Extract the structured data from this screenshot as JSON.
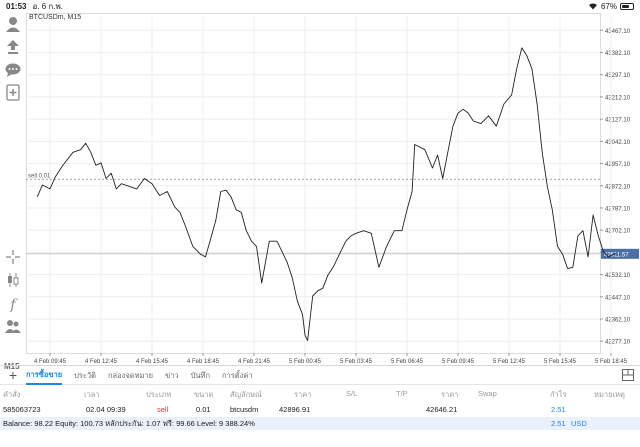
{
  "status": {
    "time": "01:53",
    "date": "อ. 6 ก.พ.",
    "battery": "67%",
    "battery_level": 0.67
  },
  "toolbar": {
    "timeframe": "M15",
    "icons": [
      "user-icon",
      "download-icon",
      "chat-icon",
      "add-indicator-icon",
      "crosshair-icon",
      "candlestick-icon",
      "function-icon",
      "objects-icon"
    ]
  },
  "chart": {
    "symbol_label": "BTCUSDm, M15",
    "sell_label": "sell 0.01",
    "current_price": "42611.57",
    "y_ticks": [
      "43467.10",
      "43382.10",
      "43297.10",
      "43212.10",
      "43127.10",
      "43042.10",
      "42957.10",
      "42872.10",
      "42787.10",
      "42702.10",
      "42617.10",
      "42532.10",
      "42447.10",
      "42362.10",
      "42277.10"
    ],
    "x_ticks": [
      "4 Feb 09:45",
      "4 Feb 12:45",
      "4 Feb 15:45",
      "4 Feb 18:45",
      "4 Feb 21:45",
      "5 Feb 00:45",
      "5 Feb 03:45",
      "5 Feb 06:45",
      "5 Feb 09:45",
      "5 Feb 12:45",
      "5 Feb 15:45",
      "5 Feb 18:45"
    ]
  },
  "chart_data": {
    "type": "line",
    "ylim": [
      42232,
      43518
    ],
    "sell_level": 42896.91,
    "current_price": 42611.57,
    "x_range": [
      -0.25,
      11.1
    ],
    "points": [
      [
        -0.25,
        42830
      ],
      [
        -0.15,
        42875
      ],
      [
        0.0,
        42860
      ],
      [
        0.1,
        42905
      ],
      [
        0.25,
        42950
      ],
      [
        0.45,
        43000
      ],
      [
        0.6,
        43010
      ],
      [
        0.7,
        43035
      ],
      [
        0.8,
        43000
      ],
      [
        0.9,
        42950
      ],
      [
        1.0,
        42960
      ],
      [
        1.1,
        42900
      ],
      [
        1.2,
        42920
      ],
      [
        1.3,
        42860
      ],
      [
        1.4,
        42880
      ],
      [
        1.55,
        42870
      ],
      [
        1.7,
        42860
      ],
      [
        1.85,
        42900
      ],
      [
        2.0,
        42880
      ],
      [
        2.15,
        42835
      ],
      [
        2.3,
        42850
      ],
      [
        2.45,
        42790
      ],
      [
        2.55,
        42770
      ],
      [
        2.65,
        42720
      ],
      [
        2.8,
        42640
      ],
      [
        2.95,
        42610
      ],
      [
        3.05,
        42600
      ],
      [
        3.15,
        42670
      ],
      [
        3.25,
        42740
      ],
      [
        3.35,
        42850
      ],
      [
        3.45,
        42855
      ],
      [
        3.55,
        42830
      ],
      [
        3.65,
        42780
      ],
      [
        3.75,
        42770
      ],
      [
        3.85,
        42700
      ],
      [
        3.95,
        42660
      ],
      [
        4.05,
        42640
      ],
      [
        4.15,
        42500
      ],
      [
        4.3,
        42660
      ],
      [
        4.45,
        42660
      ],
      [
        4.55,
        42620
      ],
      [
        4.65,
        42580
      ],
      [
        4.75,
        42520
      ],
      [
        4.85,
        42430
      ],
      [
        4.95,
        42380
      ],
      [
        5.0,
        42300
      ],
      [
        5.05,
        42280
      ],
      [
        5.15,
        42450
      ],
      [
        5.25,
        42470
      ],
      [
        5.35,
        42480
      ],
      [
        5.45,
        42530
      ],
      [
        5.55,
        42560
      ],
      [
        5.7,
        42620
      ],
      [
        5.8,
        42660
      ],
      [
        5.9,
        42680
      ],
      [
        6.0,
        42690
      ],
      [
        6.15,
        42700
      ],
      [
        6.3,
        42690
      ],
      [
        6.45,
        42560
      ],
      [
        6.6,
        42640
      ],
      [
        6.75,
        42700
      ],
      [
        6.9,
        42700
      ],
      [
        7.0,
        42780
      ],
      [
        7.1,
        42850
      ],
      [
        7.15,
        43030
      ],
      [
        7.35,
        43010
      ],
      [
        7.5,
        42940
      ],
      [
        7.6,
        42990
      ],
      [
        7.7,
        42900
      ],
      [
        7.8,
        43000
      ],
      [
        7.9,
        43100
      ],
      [
        8.0,
        43150
      ],
      [
        8.1,
        43165
      ],
      [
        8.2,
        43150
      ],
      [
        8.3,
        43120
      ],
      [
        8.45,
        43110
      ],
      [
        8.6,
        43140
      ],
      [
        8.75,
        43100
      ],
      [
        8.9,
        43185
      ],
      [
        9.05,
        43220
      ],
      [
        9.15,
        43320
      ],
      [
        9.25,
        43400
      ],
      [
        9.35,
        43370
      ],
      [
        9.45,
        43320
      ],
      [
        9.55,
        43185
      ],
      [
        9.65,
        43000
      ],
      [
        9.75,
        42870
      ],
      [
        9.85,
        42780
      ],
      [
        9.95,
        42640
      ],
      [
        10.05,
        42610
      ],
      [
        10.15,
        42555
      ],
      [
        10.25,
        42560
      ],
      [
        10.35,
        42680
      ],
      [
        10.45,
        42700
      ],
      [
        10.55,
        42600
      ],
      [
        10.65,
        42760
      ],
      [
        10.75,
        42680
      ],
      [
        10.85,
        42620
      ],
      [
        10.95,
        42600
      ],
      [
        11.05,
        42610
      ],
      [
        11.1,
        42612
      ]
    ]
  },
  "tabs": [
    {
      "label": "การซื้อขาย",
      "active": true
    },
    {
      "label": "ประวัติ",
      "active": false
    },
    {
      "label": "กล่องจดหมาย",
      "active": false
    },
    {
      "label": "ข่าว",
      "active": false
    },
    {
      "label": "บันทึก",
      "active": false
    },
    {
      "label": "การตั้งค่า",
      "active": false
    }
  ],
  "columns": {
    "order": "คำสั่ง",
    "time": "เวลา",
    "type": "ประเภท",
    "volume": "ขนาด",
    "symbol": "สัญลักษณ์",
    "price": "ราคา",
    "sl": "S/L",
    "tp": "T/P",
    "cur_price": "ราคา",
    "swap": "Swap",
    "profit": "กำไร",
    "note": "หมายเหตุ"
  },
  "position": {
    "order": "585063723",
    "time": "02.04 09:39",
    "type": "sell",
    "volume": "0.01",
    "symbol": "btcusdm",
    "price": "42896.91",
    "cur_price": "42646.21",
    "profit": "2.51"
  },
  "summary": {
    "text": "Balance: 98.22 Equity: 100.73 หลักประกัน: 1.07 ฟรี: 99.66 Level: 9 388.24%",
    "profit": "2.51",
    "currency": "USD"
  },
  "colors": {
    "accent": "#1e88e5",
    "sell": "#e53935",
    "line": "#222222"
  }
}
